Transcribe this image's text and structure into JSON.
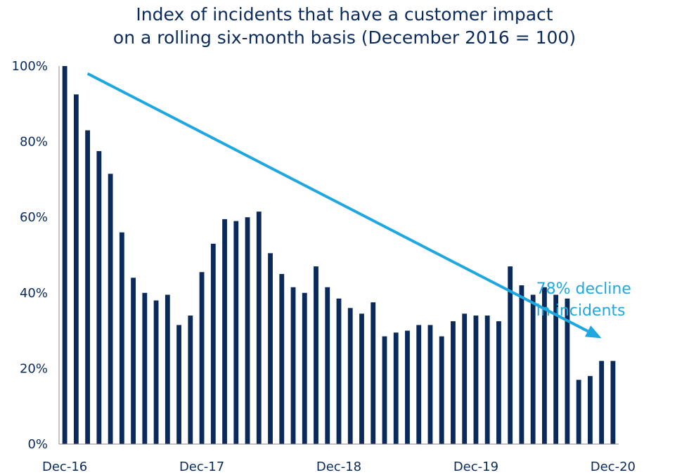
{
  "chart_data": {
    "type": "bar",
    "title_lines": [
      "Index of incidents that have a customer impact",
      "on a rolling six-month basis (December 2016 = 100)"
    ],
    "xlabel": "",
    "ylabel": "",
    "ylim": [
      0,
      100
    ],
    "y_ticks": [
      {
        "value": 0,
        "label": "0%"
      },
      {
        "value": 20,
        "label": "20%"
      },
      {
        "value": 40,
        "label": "40%"
      },
      {
        "value": 60,
        "label": "60%"
      },
      {
        "value": 80,
        "label": "80%"
      },
      {
        "value": 100,
        "label": "100%"
      }
    ],
    "x_tick_labels": [
      {
        "index": 0,
        "label": "Dec-16"
      },
      {
        "index": 12,
        "label": "Dec-17"
      },
      {
        "index": 24,
        "label": "Dec-18"
      },
      {
        "index": 36,
        "label": "Dec-19"
      },
      {
        "index": 48,
        "label": "Dec-20"
      }
    ],
    "categories": [
      "Dec-16",
      "Jan-17",
      "Feb-17",
      "Mar-17",
      "Apr-17",
      "May-17",
      "Jun-17",
      "Jul-17",
      "Aug-17",
      "Sep-17",
      "Oct-17",
      "Nov-17",
      "Dec-17",
      "Jan-18",
      "Feb-18",
      "Mar-18",
      "Apr-18",
      "May-18",
      "Jun-18",
      "Jul-18",
      "Aug-18",
      "Sep-18",
      "Oct-18",
      "Nov-18",
      "Dec-18",
      "Jan-19",
      "Feb-19",
      "Mar-19",
      "Apr-19",
      "May-19",
      "Jun-19",
      "Jul-19",
      "Aug-19",
      "Sep-19",
      "Oct-19",
      "Nov-19",
      "Dec-19",
      "Jan-20",
      "Feb-20",
      "Mar-20",
      "Apr-20",
      "May-20",
      "Jun-20",
      "Jul-20",
      "Aug-20",
      "Sep-20",
      "Oct-20",
      "Nov-20",
      "Dec-20"
    ],
    "values": [
      100,
      92.5,
      83,
      77.5,
      71.5,
      56,
      44,
      40,
      38,
      39.5,
      31.5,
      34,
      45.5,
      53,
      59.5,
      59,
      60,
      61.5,
      50.5,
      45,
      41.5,
      40,
      47,
      41.5,
      38.5,
      36,
      34.5,
      37.5,
      28.5,
      29.5,
      30,
      31.5,
      31.5,
      28.5,
      32.5,
      34.5,
      34,
      34,
      32.5,
      47,
      42,
      39.5,
      41.5,
      39.5,
      38.5,
      17,
      18,
      22,
      22
    ],
    "bar_color": "#0b2a5c",
    "trend_arrow": {
      "from": {
        "index": 2,
        "value": 98
      },
      "to": {
        "index": 47,
        "value": 28
      },
      "color": "#1fa8e0"
    },
    "annotation": {
      "lines": [
        "78% decline",
        "in incidents"
      ],
      "color": "#1fa8e0"
    },
    "grid": false,
    "legend": "none"
  }
}
